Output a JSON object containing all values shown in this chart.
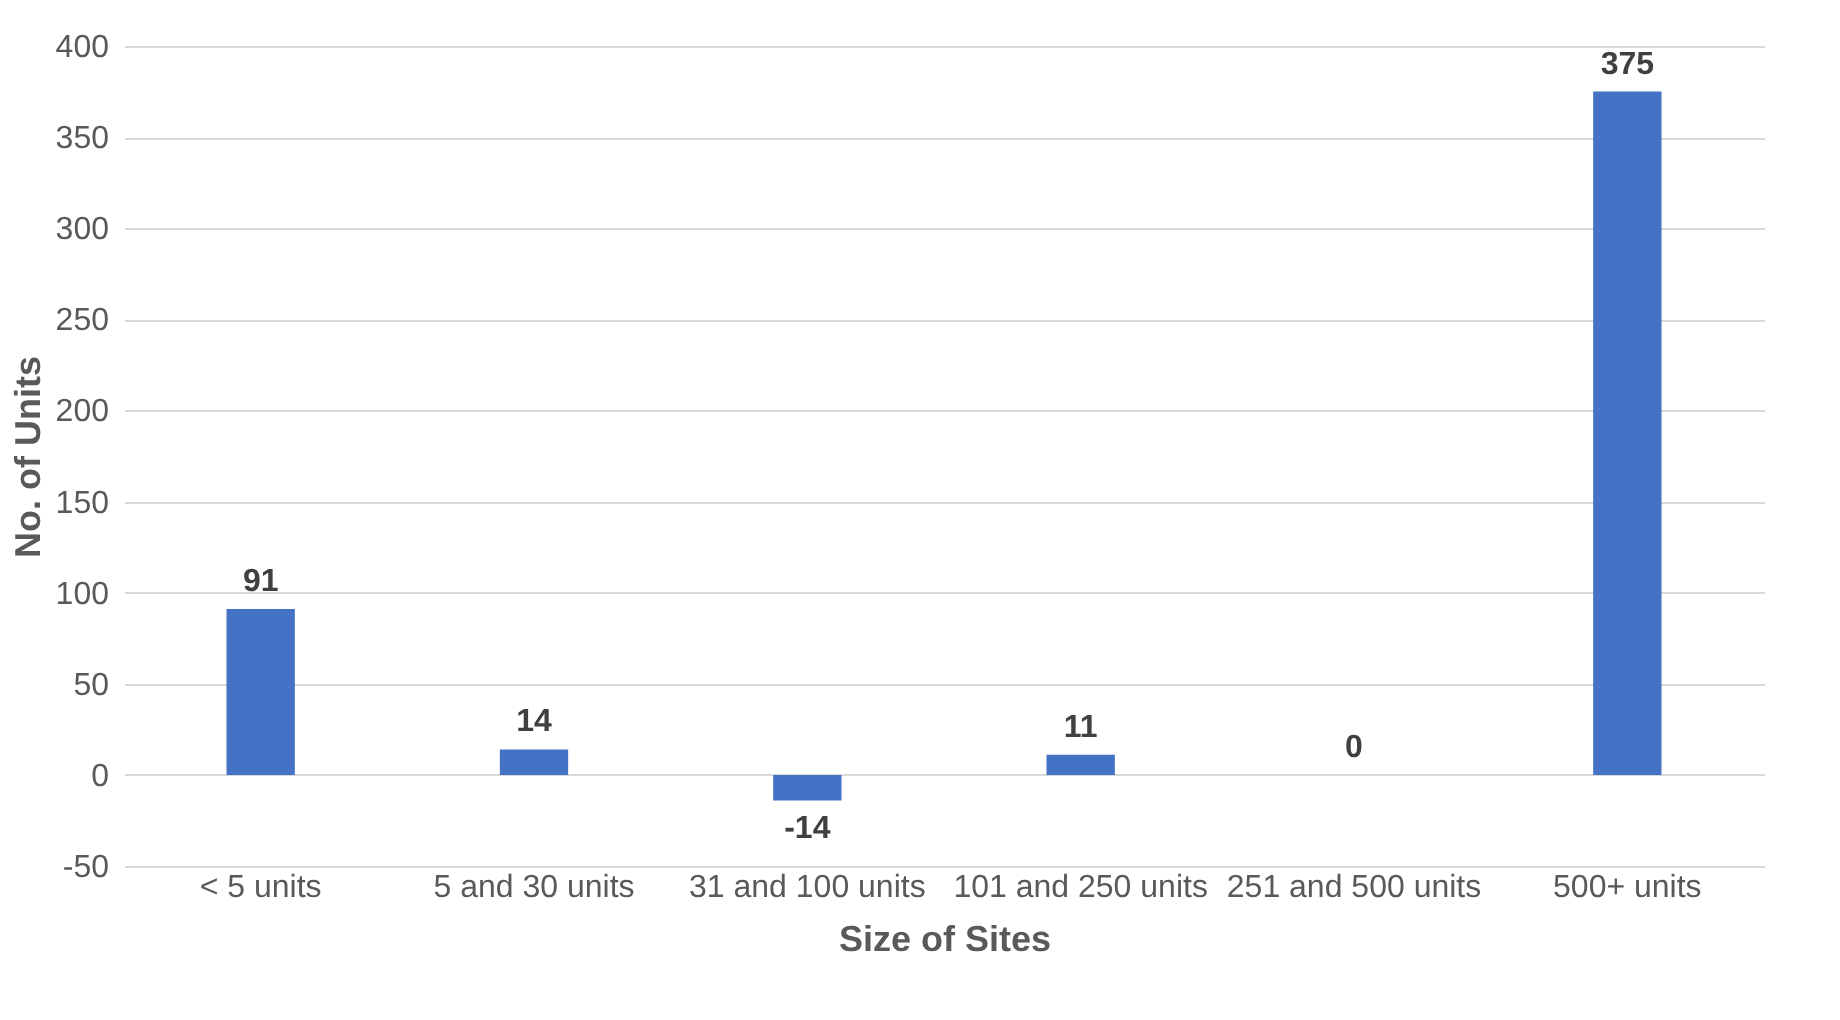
{
  "chart_data": {
    "type": "bar",
    "xlabel": "Size of Sites",
    "ylabel": "No. of Units",
    "categories": [
      "< 5 units",
      "5 and 30 units",
      "31 and 100 units",
      "101 and 250 units",
      "251 and 500 units",
      "500+ units"
    ],
    "values": [
      91,
      14,
      -14,
      11,
      0,
      375
    ],
    "color": "#4472c4",
    "ylim": [
      -50,
      400
    ],
    "yticks": [
      -50,
      0,
      50,
      100,
      150,
      200,
      250,
      300,
      350,
      400
    ],
    "grid": true,
    "data_labels": true
  }
}
